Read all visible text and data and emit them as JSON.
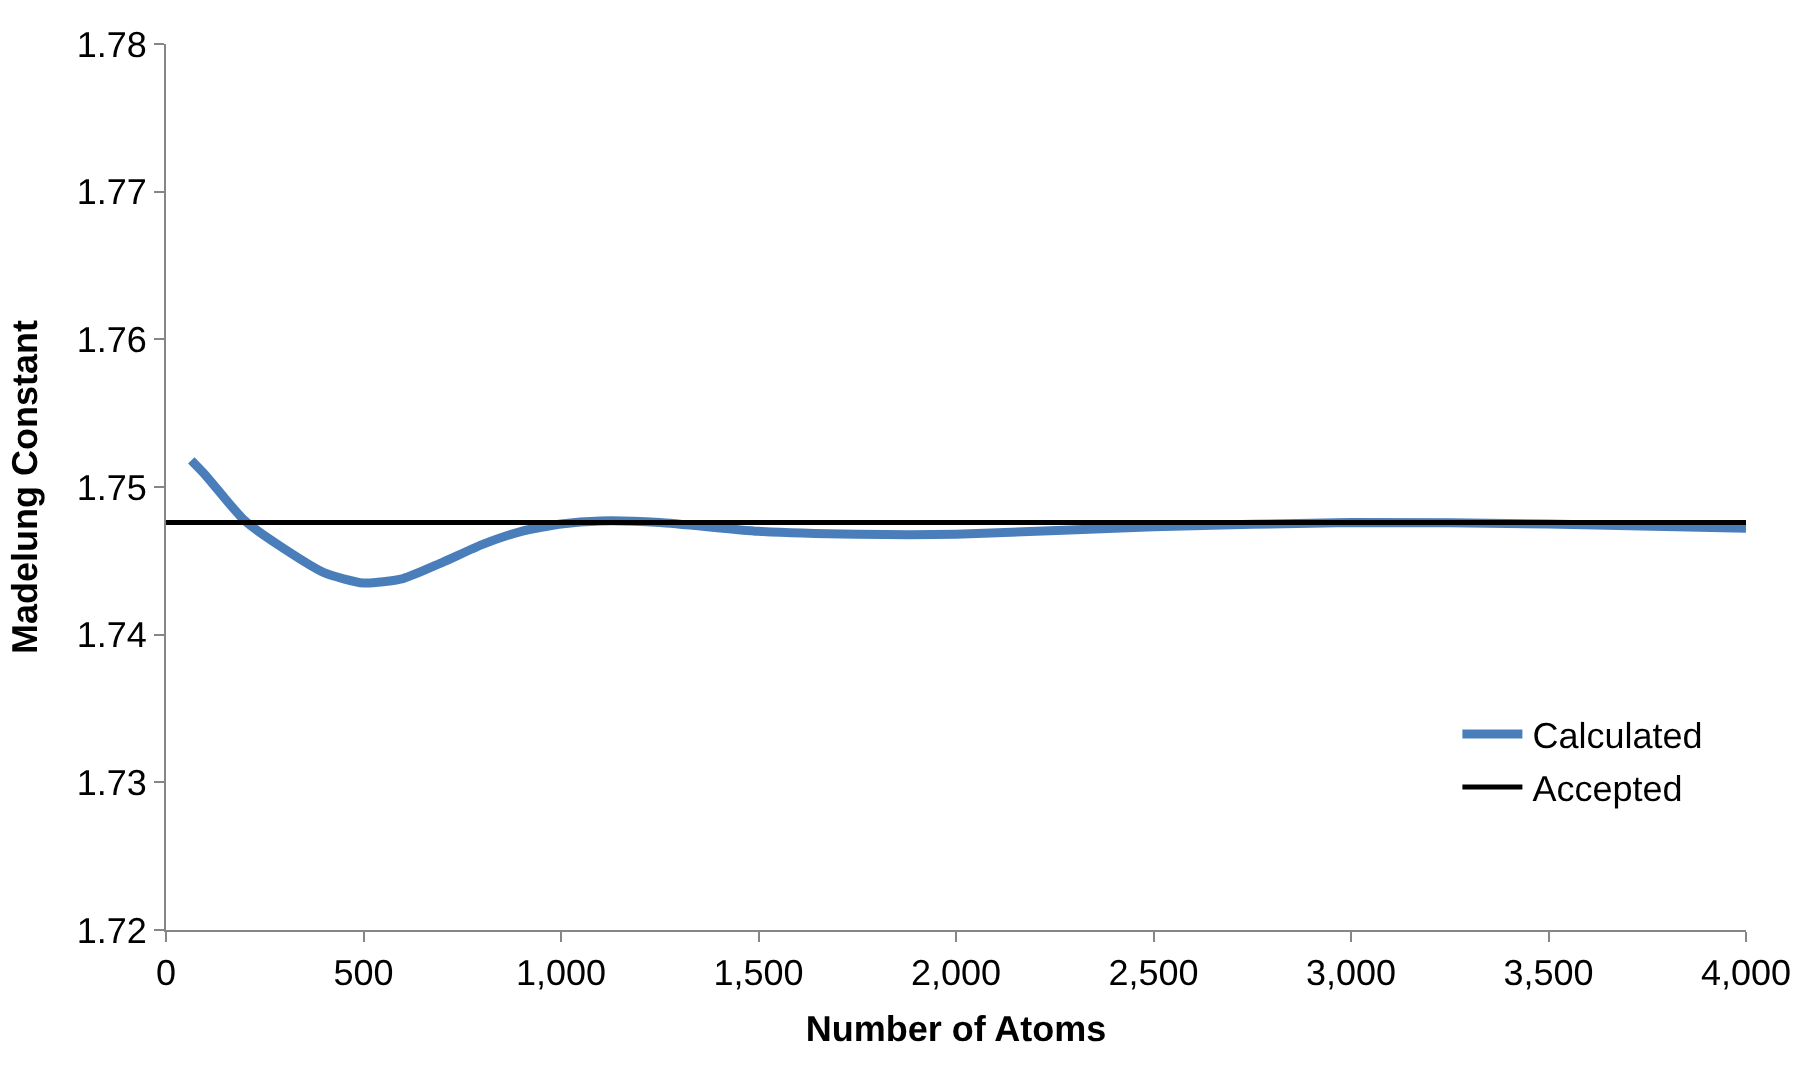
{
  "chart_data": {
    "type": "line",
    "xlabel": "Number of Atoms",
    "ylabel": "Madelung Constant",
    "xlim": [
      0,
      4000
    ],
    "ylim": [
      1.72,
      1.78
    ],
    "xticks": [
      0,
      500,
      {
        "value": 1000,
        "label": "1,000"
      },
      {
        "value": 1500,
        "label": "1,500"
      },
      {
        "value": 2000,
        "label": "2,000"
      },
      {
        "value": 2500,
        "label": "2,500"
      },
      {
        "value": 3000,
        "label": "3,000"
      },
      {
        "value": 3500,
        "label": "3,500"
      },
      {
        "value": 4000,
        "label": "4,000"
      }
    ],
    "yticks": [
      1.72,
      1.73,
      1.74,
      1.75,
      1.76,
      1.77,
      1.78
    ],
    "grid": false,
    "legend": "bottom right",
    "marker": "none",
    "line_style": "solid",
    "series": [
      {
        "name": "Calculated",
        "color": "#4a7ebb",
        "x": [
          64,
          100,
          150,
          200,
          300,
          400,
          500,
          600,
          700,
          800,
          900,
          1000,
          1100,
          1250,
          1500,
          1750,
          2000,
          2500,
          3000,
          3500,
          4000
        ],
        "values": [
          1.7518,
          1.7508,
          1.7492,
          1.7477,
          1.7458,
          1.7442,
          1.7435,
          1.7438,
          1.7449,
          1.7461,
          1.747,
          1.7475,
          1.7477,
          1.7476,
          1.747,
          1.7468,
          1.7468,
          1.7473,
          1.7476,
          1.7475,
          1.7472
        ]
      },
      {
        "name": "Accepted",
        "color": "#000000",
        "x": [
          0,
          4000
        ],
        "values": [
          1.7476,
          1.7476
        ]
      }
    ]
  }
}
